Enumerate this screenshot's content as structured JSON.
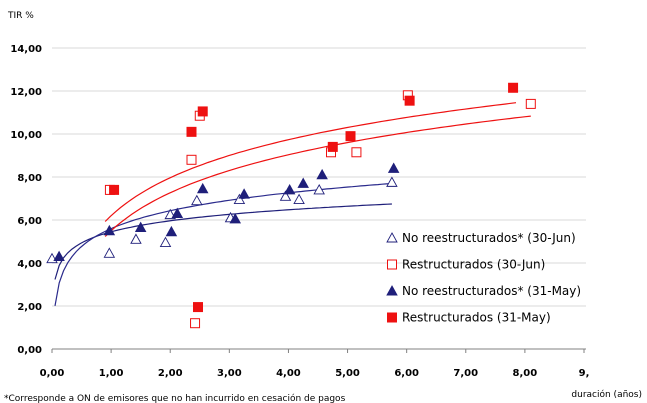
{
  "chart_data": {
    "type": "scatter",
    "ylabel": "TIR %",
    "xlabel": "duración (años)",
    "xlim": [
      0,
      9
    ],
    "ylim": [
      0,
      14
    ],
    "x_ticks": [
      "0,00",
      "1,00",
      "2,00",
      "3,00",
      "4,00",
      "5,00",
      "6,00",
      "7,00",
      "8,00",
      "9,"
    ],
    "y_ticks": [
      "0,00",
      "2,00",
      "4,00",
      "6,00",
      "8,00",
      "10,00",
      "12,00",
      "14,00"
    ],
    "grid": "horizontal",
    "legend_position": "lower-right",
    "footnote": "*Corresponde a ON de emisores que no han incurrido en cesación de pagos",
    "series": [
      {
        "name": "No reestructurados* (30-Jun)",
        "marker": "triangle-open",
        "color": "#1f1f7a",
        "points": [
          [
            0.0,
            4.2
          ],
          [
            0.97,
            4.45
          ],
          [
            1.42,
            5.1
          ],
          [
            1.92,
            4.95
          ],
          [
            2.0,
            6.25
          ],
          [
            2.45,
            6.9
          ],
          [
            3.02,
            6.1
          ],
          [
            3.17,
            6.95
          ],
          [
            3.95,
            7.1
          ],
          [
            4.18,
            6.95
          ],
          [
            4.52,
            7.4
          ],
          [
            5.75,
            7.75
          ]
        ]
      },
      {
        "name": "Restructurados (30-Jun)",
        "marker": "square-open",
        "color": "#e11",
        "points": [
          [
            0.98,
            7.4
          ],
          [
            2.36,
            8.8
          ],
          [
            2.5,
            10.85
          ],
          [
            2.42,
            1.2
          ],
          [
            4.72,
            9.15
          ],
          [
            5.15,
            9.15
          ],
          [
            6.02,
            11.8
          ],
          [
            8.1,
            11.4
          ]
        ]
      },
      {
        "name": "No reestructurados* (31-May)",
        "marker": "triangle-filled",
        "color": "#1f1f7a",
        "points": [
          [
            0.12,
            4.3
          ],
          [
            0.97,
            5.5
          ],
          [
            1.5,
            5.65
          ],
          [
            2.02,
            5.45
          ],
          [
            2.12,
            6.3
          ],
          [
            2.55,
            7.45
          ],
          [
            3.1,
            6.05
          ],
          [
            3.25,
            7.2
          ],
          [
            4.02,
            7.4
          ],
          [
            4.25,
            7.7
          ],
          [
            4.57,
            8.1
          ],
          [
            5.78,
            8.4
          ]
        ]
      },
      {
        "name": "Restructurados (31-May)",
        "marker": "square-filled",
        "color": "#e11",
        "points": [
          [
            1.05,
            7.4
          ],
          [
            2.36,
            10.1
          ],
          [
            2.55,
            11.05
          ],
          [
            2.47,
            1.95
          ],
          [
            4.75,
            9.4
          ],
          [
            5.05,
            9.9
          ],
          [
            6.05,
            11.55
          ],
          [
            7.8,
            12.15
          ]
        ]
      }
    ],
    "trendlines": [
      {
        "series": 0,
        "color": "#1f1f7a",
        "a": 5.45,
        "b": 0.74,
        "x_range": [
          0.05,
          5.75
        ]
      },
      {
        "series": 2,
        "color": "#2a2a8c",
        "a": 5.6,
        "b": 1.2,
        "x_range": [
          0.05,
          5.8
        ]
      },
      {
        "series": 1,
        "color": "#e11",
        "a": 6.2,
        "b": 2.55,
        "x_range": [
          0.9,
          7.85
        ]
      },
      {
        "series": 3,
        "color": "#e11",
        "a": 5.5,
        "b": 2.55,
        "x_range": [
          0.9,
          8.1
        ]
      }
    ]
  }
}
